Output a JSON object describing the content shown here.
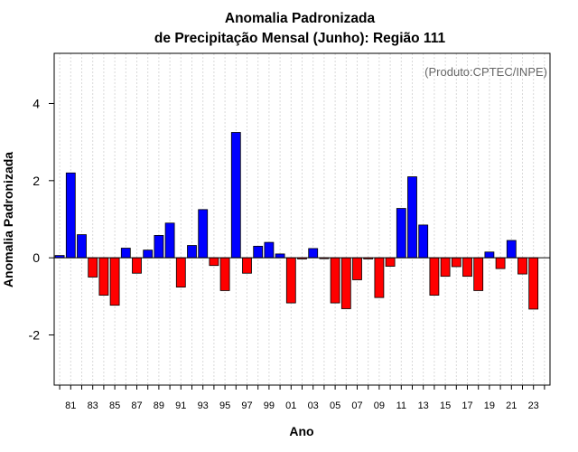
{
  "chart_data": {
    "type": "bar",
    "title_line1": "Anomalia Padronizada",
    "title_line2": "de Precipitação Mensal (Junho): Região 111",
    "xlabel": "Ano",
    "ylabel": "Anomalia Padronizada",
    "annotation": "(Produto:CPTEC/INPE)",
    "ylim": [
      -3.3,
      5.3
    ],
    "yticks": [
      -2,
      0,
      2,
      4
    ],
    "ytick_labels": [
      "-2",
      "0",
      "2",
      "4"
    ],
    "grid": "vertical dotted",
    "categories": [
      "1980",
      "1981",
      "1982",
      "1983",
      "1984",
      "1985",
      "1986",
      "1987",
      "1988",
      "1989",
      "1990",
      "1991",
      "1992",
      "1993",
      "1994",
      "1995",
      "1996",
      "1997",
      "1998",
      "1999",
      "2000",
      "2001",
      "2002",
      "2003",
      "2004",
      "2005",
      "2006",
      "2007",
      "2008",
      "2009",
      "2010",
      "2011",
      "2012",
      "2013",
      "2014",
      "2015",
      "2016",
      "2017",
      "2018",
      "2019",
      "2020",
      "2021",
      "2022",
      "2023",
      "2024"
    ],
    "values": [
      0.06,
      2.2,
      0.6,
      -0.5,
      -0.97,
      -1.23,
      0.25,
      -0.4,
      0.2,
      0.58,
      0.9,
      -0.76,
      0.32,
      1.25,
      -0.2,
      -0.85,
      3.25,
      -0.4,
      0.3,
      0.4,
      0.1,
      -1.17,
      -0.03,
      0.24,
      -0.02,
      -1.17,
      -1.32,
      -0.57,
      -0.03,
      -1.03,
      -0.22,
      1.28,
      2.1,
      0.85,
      -0.97,
      -0.48,
      -0.23,
      -0.48,
      -0.85,
      0.15,
      -0.28,
      0.45,
      -0.42,
      -1.33,
      null
    ],
    "xtick_labels": [
      "81",
      "83",
      "85",
      "87",
      "89",
      "91",
      "93",
      "95",
      "97",
      "99",
      "01",
      "03",
      "05",
      "07",
      "09",
      "11",
      "13",
      "15",
      "17",
      "19",
      "21",
      "23"
    ],
    "colors": {
      "positive": "#0000ff",
      "negative": "#ff0000",
      "grid": "#d9d9d9",
      "frame": "#000000",
      "zero_line": "#000000"
    }
  }
}
